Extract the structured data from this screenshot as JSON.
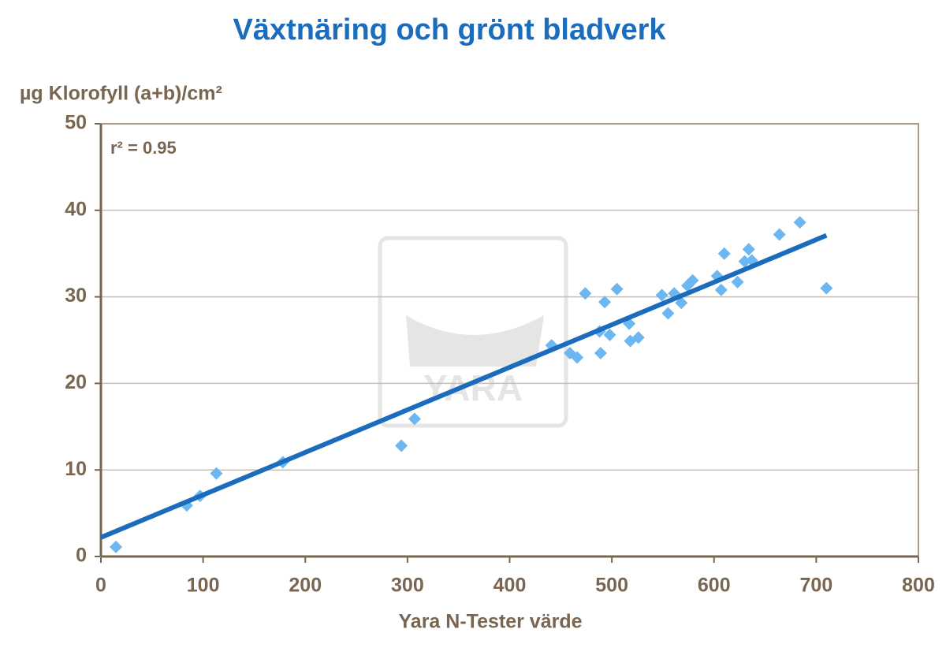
{
  "chart_data": {
    "type": "scatter",
    "title": "Växtnäring och grönt bladverk",
    "y_label": "µg Klorofyll (a+b)/cm²",
    "x_label": "Yara N-Tester värde",
    "annotation": "r² = 0.95",
    "watermark": "YARA",
    "color": "#6cb6f2",
    "grid": true,
    "xlim": [
      0,
      800
    ],
    "ylim": [
      0,
      50
    ],
    "xticks": [
      0,
      100,
      200,
      300,
      400,
      500,
      600,
      700,
      800
    ],
    "yticks": [
      0,
      10,
      20,
      30,
      40,
      50
    ],
    "x": [
      14.7,
      84,
      97,
      113,
      178,
      294,
      307,
      441,
      459,
      466,
      474,
      489,
      488,
      493,
      498,
      505,
      517,
      518,
      526,
      549,
      555,
      561,
      568,
      574,
      579,
      603,
      607,
      610,
      623,
      630,
      634,
      637,
      664,
      684,
      710
    ],
    "values": [
      1.1,
      5.9,
      7.0,
      9.6,
      10.9,
      12.8,
      15.9,
      24.4,
      23.5,
      23.0,
      30.4,
      23.5,
      26.0,
      29.4,
      25.6,
      30.9,
      26.9,
      24.9,
      25.3,
      30.2,
      28.1,
      30.4,
      29.3,
      31.3,
      31.9,
      32.4,
      30.8,
      35.0,
      31.7,
      34.1,
      35.5,
      34.2,
      37.2,
      38.6,
      31.0
    ],
    "trendline": {
      "color": "#1c6cbd",
      "x": [
        0,
        710
      ],
      "values": [
        2.2,
        37.1
      ]
    }
  }
}
